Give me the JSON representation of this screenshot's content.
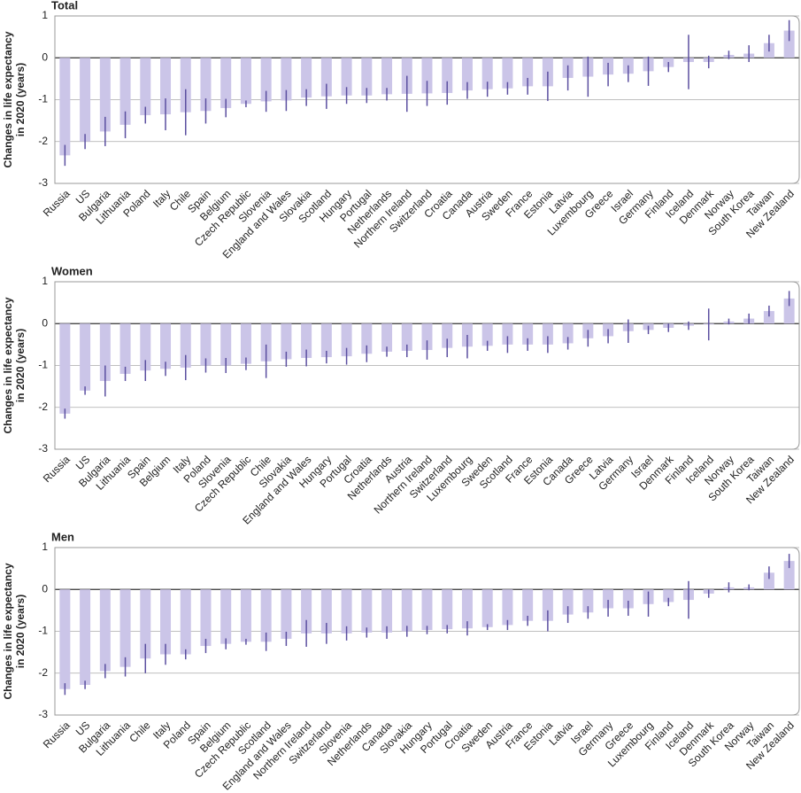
{
  "chart_data": [
    {
      "type": "bar",
      "title": "Total",
      "ylabel": [
        "Changes in life expectancy",
        "in 2020 (years)"
      ],
      "categories": [
        "Russia",
        "US",
        "Bulgaria",
        "Lithuania",
        "Poland",
        "Italy",
        "Chile",
        "Spain",
        "Belgium",
        "Czech Republic",
        "Slovenia",
        "England and Wales",
        "Slovakia",
        "Scotland",
        "Hungary",
        "Portugal",
        "Netherlands",
        "Northern Ireland",
        "Switzerland",
        "Croatia",
        "Canada",
        "Austria",
        "Sweden",
        "France",
        "Estonia",
        "Latvia",
        "Luxembourg",
        "Greece",
        "Israel",
        "Germany",
        "Finland",
        "Iceland",
        "Denmark",
        "Norway",
        "South Korea",
        "Taiwan",
        "New Zealand"
      ],
      "values": [
        -2.33,
        -2.0,
        -1.76,
        -1.6,
        -1.37,
        -1.35,
        -1.3,
        -1.27,
        -1.2,
        -1.1,
        -1.04,
        -1.02,
        -0.95,
        -0.92,
        -0.9,
        -0.9,
        -0.87,
        -0.86,
        -0.85,
        -0.84,
        -0.78,
        -0.75,
        -0.73,
        -0.68,
        -0.68,
        -0.48,
        -0.45,
        -0.4,
        -0.38,
        -0.32,
        -0.22,
        -0.1,
        -0.1,
        0.07,
        0.1,
        0.35,
        0.65
      ],
      "errors": [
        0.25,
        0.18,
        0.35,
        0.32,
        0.2,
        0.38,
        0.55,
        0.3,
        0.22,
        0.08,
        0.25,
        0.25,
        0.2,
        0.3,
        0.2,
        0.18,
        0.15,
        0.43,
        0.3,
        0.28,
        0.2,
        0.18,
        0.15,
        0.2,
        0.35,
        0.3,
        0.48,
        0.28,
        0.2,
        0.35,
        0.12,
        0.65,
        0.15,
        0.1,
        0.2,
        0.2,
        0.25
      ],
      "color": "#cbc5e8",
      "error_color": "#5b4fa0",
      "ylim": [
        -3,
        1
      ],
      "yticks": [
        1,
        0,
        -1,
        -2,
        -3
      ],
      "grid": true
    },
    {
      "type": "bar",
      "title": "Women",
      "ylabel": [
        "Changes in life expectancy",
        "in 2020 (years)"
      ],
      "categories": [
        "Russia",
        "US",
        "Bulgaria",
        "Lithuania",
        "Spain",
        "Belgium",
        "Italy",
        "Poland",
        "Slovenia",
        "Czech Republic",
        "Chile",
        "Slovakia",
        "England and Wales",
        "Hungary",
        "Portugal",
        "Croatia",
        "Netherlands",
        "Austria",
        "Northern Ireland",
        "Switzerland",
        "Luxembourg",
        "Sweden",
        "Scotland",
        "France",
        "Estonia",
        "Canada",
        "Greece",
        "Latvia",
        "Germany",
        "Israel",
        "Denmark",
        "Finland",
        "Iceland",
        "Norway",
        "South Korea",
        "Taiwan",
        "New Zealand"
      ],
      "values": [
        -2.15,
        -1.6,
        -1.37,
        -1.2,
        -1.12,
        -1.08,
        -1.05,
        -1.0,
        -1.0,
        -0.96,
        -0.9,
        -0.85,
        -0.82,
        -0.8,
        -0.78,
        -0.72,
        -0.67,
        -0.65,
        -0.63,
        -0.58,
        -0.55,
        -0.53,
        -0.5,
        -0.5,
        -0.5,
        -0.47,
        -0.35,
        -0.3,
        -0.18,
        -0.15,
        -0.1,
        -0.05,
        -0.02,
        0.05,
        0.12,
        0.3,
        0.6
      ],
      "errors": [
        0.12,
        0.1,
        0.37,
        0.17,
        0.25,
        0.17,
        0.3,
        0.17,
        0.18,
        0.15,
        0.4,
        0.18,
        0.2,
        0.15,
        0.2,
        0.2,
        0.12,
        0.15,
        0.23,
        0.22,
        0.28,
        0.12,
        0.2,
        0.15,
        0.2,
        0.15,
        0.2,
        0.17,
        0.28,
        0.1,
        0.1,
        0.1,
        0.38,
        0.07,
        0.12,
        0.13,
        0.18
      ],
      "color": "#cbc5e8",
      "error_color": "#5b4fa0",
      "ylim": [
        -3,
        1
      ],
      "yticks": [
        1,
        0,
        -1,
        -2,
        -3
      ],
      "grid": true
    },
    {
      "type": "bar",
      "title": "Men",
      "ylabel": [
        "Changes in life expectancy",
        "in 2020 (years)"
      ],
      "categories": [
        "Russia",
        "US",
        "Bulgaria",
        "Lithuania",
        "Chile",
        "Italy",
        "Poland",
        "Spain",
        "Belgium",
        "Czech Republic",
        "Scotland",
        "England and Wales",
        "Northern Ireland",
        "Switzerland",
        "Slovenia",
        "Netherlands",
        "Canada",
        "Slovakia",
        "Hungary",
        "Portugal",
        "Croatia",
        "Sweden",
        "Austria",
        "France",
        "Estonia",
        "Latvia",
        "Israel",
        "Germany",
        "Greece",
        "Luxembourg",
        "Finland",
        "Iceland",
        "Denmark",
        "South Korea",
        "Norway",
        "Taiwan",
        "New Zealand"
      ],
      "values": [
        -2.38,
        -2.28,
        -1.95,
        -1.85,
        -1.65,
        -1.55,
        -1.55,
        -1.35,
        -1.3,
        -1.25,
        -1.25,
        -1.18,
        -1.05,
        -1.05,
        -1.05,
        -1.03,
        -1.03,
        -1.0,
        -0.97,
        -0.95,
        -0.93,
        -0.9,
        -0.85,
        -0.75,
        -0.75,
        -0.6,
        -0.55,
        -0.45,
        -0.45,
        -0.35,
        -0.3,
        -0.25,
        -0.1,
        0.05,
        0.05,
        0.4,
        0.68
      ],
      "errors": [
        0.14,
        0.1,
        0.17,
        0.23,
        0.35,
        0.25,
        0.12,
        0.17,
        0.13,
        0.07,
        0.22,
        0.17,
        0.32,
        0.25,
        0.17,
        0.12,
        0.15,
        0.13,
        0.1,
        0.1,
        0.17,
        0.07,
        0.12,
        0.12,
        0.25,
        0.2,
        0.15,
        0.2,
        0.18,
        0.3,
        0.1,
        0.45,
        0.1,
        0.12,
        0.07,
        0.15,
        0.17
      ],
      "color": "#cbc5e8",
      "error_color": "#5b4fa0",
      "ylim": [
        -3,
        1
      ],
      "yticks": [
        1,
        0,
        -1,
        -2,
        -3
      ],
      "grid": true
    }
  ]
}
